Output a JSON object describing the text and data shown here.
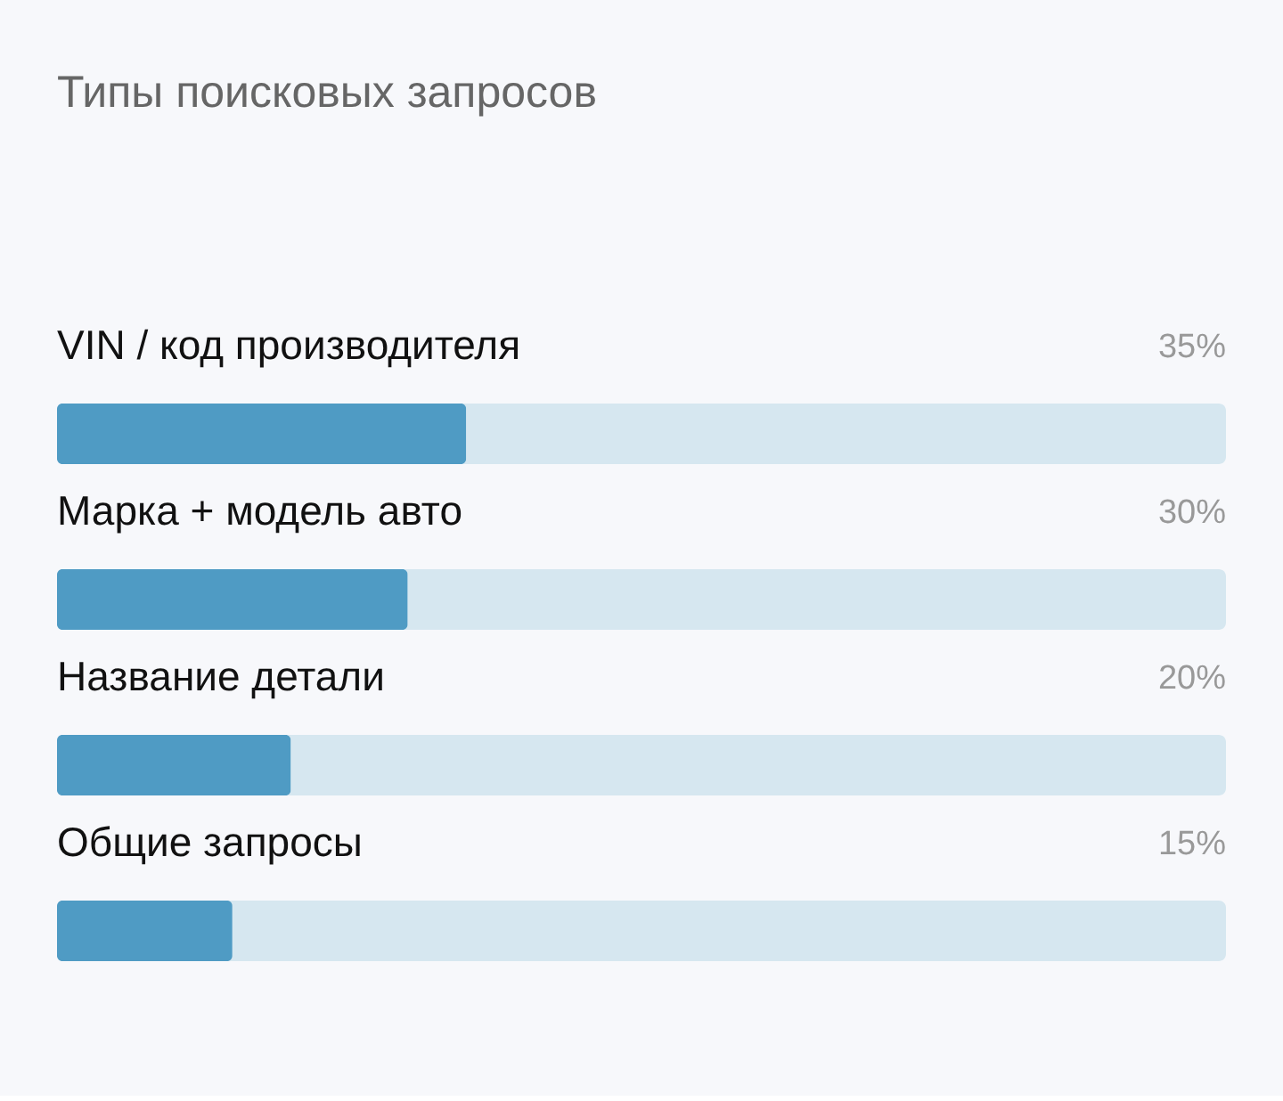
{
  "chart_data": {
    "type": "bar",
    "orientation": "horizontal",
    "title": "Типы поисковых запросов",
    "categories": [
      "VIN / код производителя",
      "Марка + модель авто",
      "Название детали",
      "Общие запросы"
    ],
    "values": [
      35,
      30,
      20,
      15
    ],
    "value_labels": [
      "35%",
      "30%",
      "20%",
      "15%"
    ],
    "color": "#4f9bc4",
    "xlim": [
      0,
      100
    ]
  }
}
